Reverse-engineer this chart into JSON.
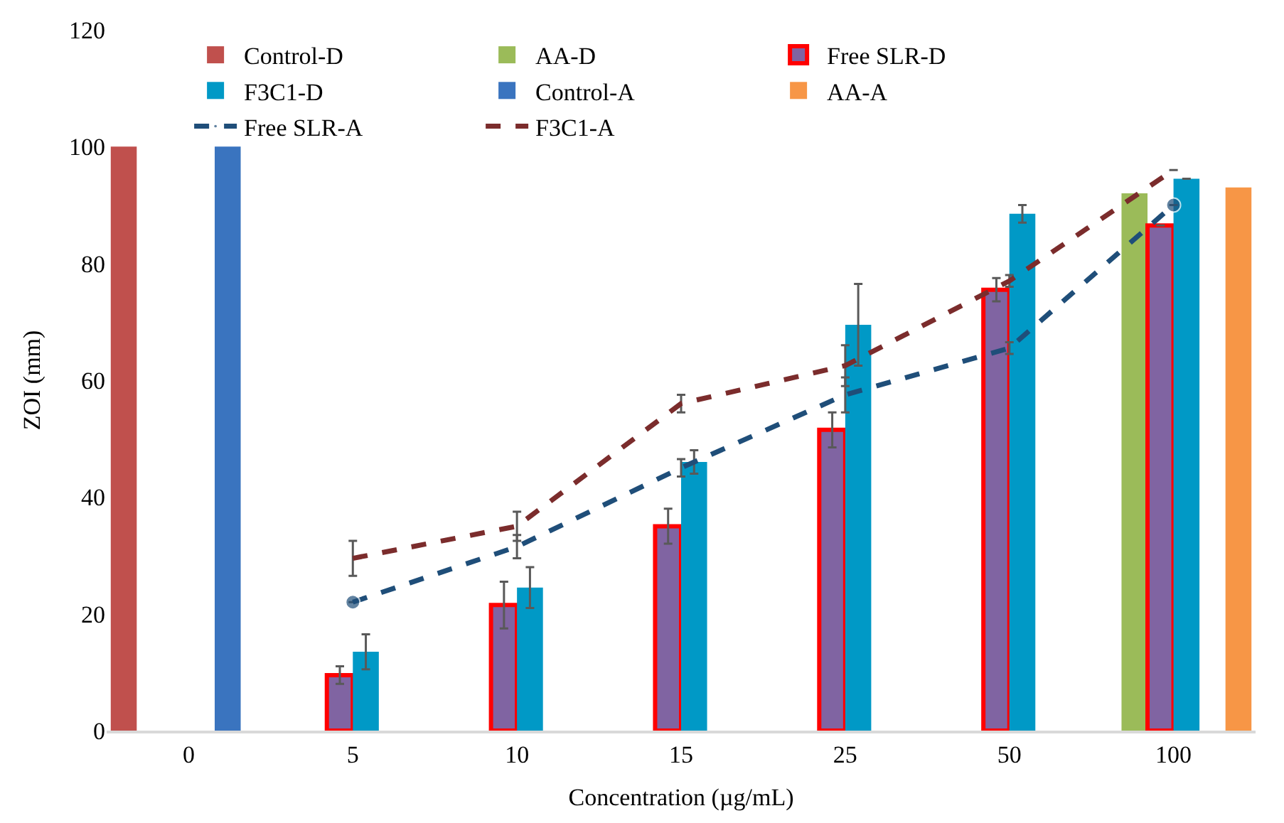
{
  "chart_data": {
    "type": "bar",
    "xlabel": "Concentration (µg/mL)",
    "ylabel": "ZOI (mm)",
    "categories": [
      "0",
      "5",
      "10",
      "15",
      "25",
      "50",
      "100"
    ],
    "ylim": [
      0,
      120
    ],
    "yticks": [
      0,
      20,
      40,
      60,
      80,
      100,
      120
    ],
    "legend": "top",
    "series": [
      {
        "name": "Control-D",
        "color": "#c0504d",
        "values": [
          100,
          null,
          null,
          null,
          null,
          null,
          null
        ]
      },
      {
        "name": "AA-D",
        "color": "#9bbb59",
        "values": [
          null,
          null,
          null,
          null,
          null,
          null,
          92
        ]
      },
      {
        "name": "Free SLR-D",
        "color": "#8064a2",
        "values": [
          null,
          9.5,
          21.5,
          35,
          51.5,
          75.5,
          86.5
        ],
        "errors": [
          null,
          1.5,
          4,
          3,
          3,
          2,
          null
        ]
      },
      {
        "name": "F3C1-D",
        "color": "#0099c6",
        "values": [
          null,
          13.5,
          24.5,
          46,
          69.5,
          88.5,
          94.5
        ],
        "errors": [
          null,
          3,
          3.5,
          2,
          7,
          1.5,
          null
        ]
      },
      {
        "name": "Control-A",
        "color": "#3a74bf",
        "values": [
          100,
          null,
          null,
          null,
          null,
          null,
          null
        ]
      },
      {
        "name": "AA-A",
        "color": "#f79646",
        "values": [
          null,
          null,
          null,
          null,
          null,
          null,
          93
        ]
      },
      {
        "name": "Free SLR-A",
        "type": "line",
        "color": "#1f4e79",
        "line_style": "dashed",
        "marker": "circle",
        "values": [
          null,
          22,
          31.5,
          45,
          57.5,
          65.5,
          90
        ],
        "errors": [
          null,
          null,
          2,
          1.5,
          3,
          1,
          null
        ]
      },
      {
        "name": "F3C1-A",
        "type": "line",
        "color": "#7b2c2c",
        "line_style": "dashed",
        "values": [
          null,
          29.5,
          35,
          56,
          62.5,
          77,
          96
        ],
        "errors": [
          null,
          3,
          2.5,
          1.5,
          3.5,
          1,
          null
        ]
      }
    ]
  }
}
